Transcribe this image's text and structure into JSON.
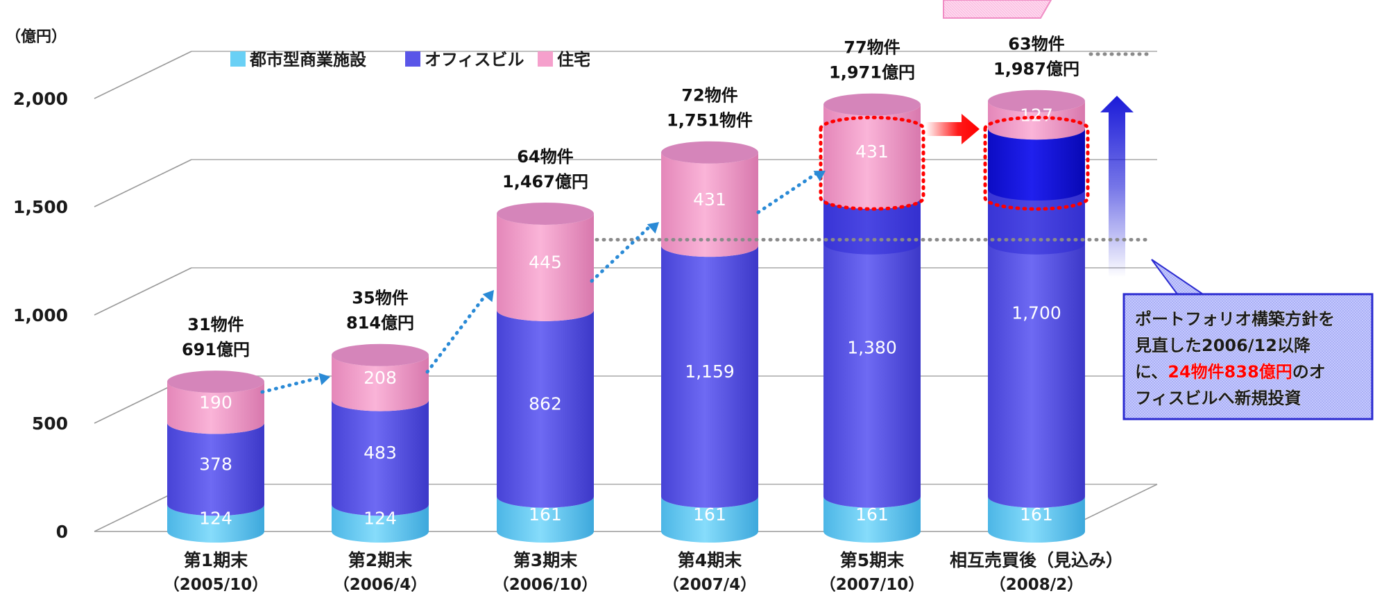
{
  "colors": {
    "commercial": "#6ad0f5",
    "office": "#5a56e8",
    "residential": "#f5a0cc",
    "highlight_red": "#ff0000",
    "office_new": "#1010d8"
  },
  "chart_data": {
    "type": "bar",
    "stacked": true,
    "ylabel": "（億円）",
    "ylim": [
      0,
      2000
    ],
    "yticks": [
      "0",
      "500",
      "1,000",
      "1,500",
      "2,000"
    ],
    "grid": true,
    "legend_position": "top-left",
    "legend": [
      "都市型商業施設",
      "オフィスビル",
      "住宅"
    ],
    "categories": [
      {
        "name": "第1期末",
        "date": "（2005/10）"
      },
      {
        "name": "第2期末",
        "date": "（2006/4）"
      },
      {
        "name": "第3期末",
        "date": "（2006/10）"
      },
      {
        "name": "第4期末",
        "date": "（2007/4）"
      },
      {
        "name": "第5期末",
        "date": "（2007/10）"
      },
      {
        "name": "相互売買後（見込み）",
        "date": "（2008/2）"
      }
    ],
    "series": [
      {
        "name": "都市型商業施設",
        "values": [
          124,
          124,
          161,
          161,
          161,
          161
        ],
        "labels": [
          "124",
          "124",
          "161",
          "161",
          "161",
          "161"
        ]
      },
      {
        "name": "オフィスビル",
        "values": [
          378,
          483,
          862,
          1159,
          1380,
          1700
        ],
        "labels": [
          "378",
          "483",
          "862",
          "1,159",
          "1,380",
          "1,700"
        ]
      },
      {
        "name": "住宅",
        "values": [
          190,
          208,
          445,
          431,
          431,
          127
        ],
        "labels": [
          "190",
          "208",
          "445",
          "431",
          "431",
          "127"
        ]
      }
    ],
    "totals": [
      {
        "count": "31物件",
        "amount": "691億円"
      },
      {
        "count": "35物件",
        "amount": "814億円"
      },
      {
        "count": "64物件",
        "amount": "1,467億円"
      },
      {
        "count": "72物件",
        "amount": "1,751物件"
      },
      {
        "count": "77物件",
        "amount": "1,971億円"
      },
      {
        "count": "63物件",
        "amount": "1,987億円"
      }
    ],
    "annotation": {
      "lines": [
        [
          {
            "text": "ポートフォリオ構築方針を",
            "color": "#1a1a1a"
          }
        ],
        [
          {
            "text": "見直した2006/12以降",
            "color": "#1a1a1a"
          }
        ],
        [
          {
            "text": "に、",
            "color": "#1a1a1a"
          },
          {
            "text": "24物件838億円",
            "color": "#ff0000"
          },
          {
            "text": "のオ",
            "color": "#1a1a1a"
          }
        ],
        [
          {
            "text": "フィスビルへ新規投資",
            "color": "#1a1a1a"
          }
        ]
      ]
    }
  }
}
